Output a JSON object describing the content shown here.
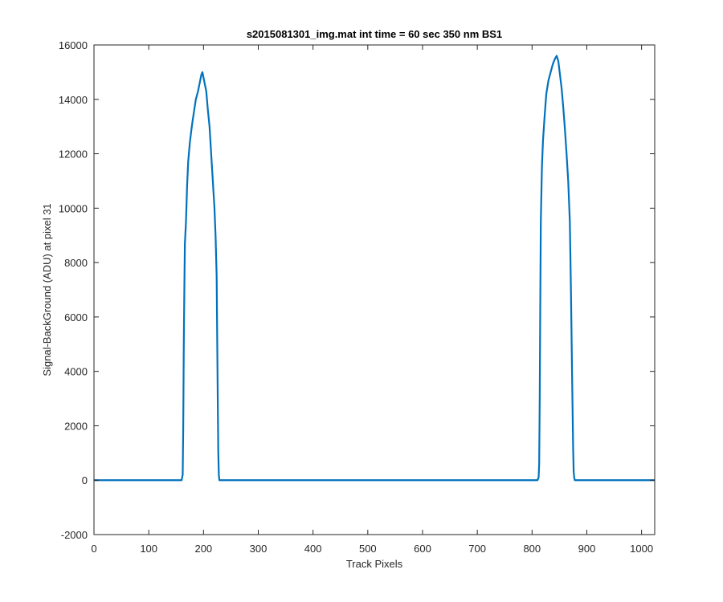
{
  "chart_data": {
    "type": "line",
    "title": "s2015081301_img.mat int time = 60 sec  350 nm BS1",
    "xlabel": "Track Pixels",
    "ylabel": "Signal-BackGround (ADU) at pixel 31",
    "xlim": [
      0,
      1024
    ],
    "ylim": [
      -2000,
      16000
    ],
    "xticks": [
      0,
      100,
      200,
      300,
      400,
      500,
      600,
      700,
      800,
      900,
      1000
    ],
    "xtick_labels": [
      "0",
      "100",
      "200",
      "300",
      "400",
      "500",
      "600",
      "700",
      "800",
      "900",
      "1000"
    ],
    "yticks": [
      -2000,
      0,
      2000,
      4000,
      6000,
      8000,
      10000,
      12000,
      14000,
      16000
    ],
    "ytick_labels": [
      "-2000",
      "0",
      "2000",
      "4000",
      "6000",
      "8000",
      "10000",
      "12000",
      "14000",
      "16000"
    ],
    "grid": false,
    "line_color": "#0072BD",
    "series": [
      {
        "x": [
          0,
          160,
          162,
          163,
          164,
          165,
          166,
          168,
          170,
          172,
          175,
          178,
          180,
          183,
          186,
          190,
          193,
          196,
          198,
          200,
          202,
          205,
          208,
          211,
          214,
          217,
          220,
          222,
          224,
          226,
          227,
          228,
          229,
          230,
          232,
          235,
          810,
          812,
          813,
          814,
          815,
          816,
          818,
          820,
          823,
          826,
          830,
          834,
          838,
          842,
          845,
          848,
          851,
          854,
          857,
          860,
          863,
          866,
          869,
          871,
          873,
          875,
          876,
          877,
          878,
          880,
          1024
        ],
        "y": [
          0,
          0,
          200,
          2000,
          5000,
          7000,
          8700,
          9500,
          10800,
          11700,
          12400,
          12900,
          13200,
          13600,
          14000,
          14300,
          14600,
          14900,
          15000,
          14800,
          14600,
          14300,
          13600,
          13000,
          12000,
          11000,
          10000,
          9000,
          7500,
          3000,
          1000,
          200,
          0,
          0,
          0,
          0,
          0,
          100,
          600,
          3000,
          6500,
          9500,
          11500,
          12500,
          13400,
          14200,
          14700,
          15000,
          15300,
          15500,
          15600,
          15400,
          14900,
          14400,
          13700,
          12900,
          12000,
          11000,
          9500,
          7000,
          4000,
          1200,
          300,
          100,
          0,
          0,
          0
        ]
      }
    ]
  }
}
